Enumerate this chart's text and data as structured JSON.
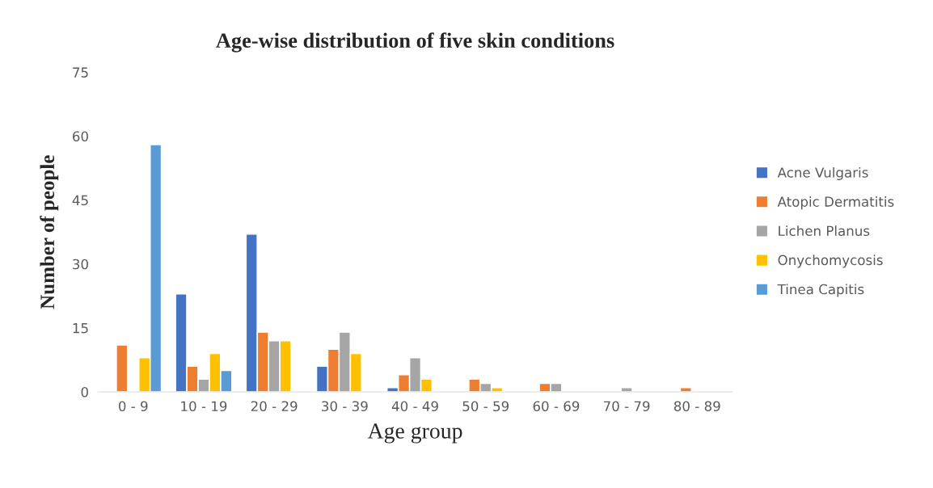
{
  "chart_data": {
    "type": "bar",
    "title": "Age-wise distribution of five skin conditions",
    "xlabel": "Age group",
    "ylabel": "Number of people",
    "categories": [
      "0 - 9",
      "10 - 19",
      "20 - 29",
      "30 - 39",
      "40 - 49",
      "50 - 59",
      "60 - 69",
      "70 - 79",
      "80 - 89"
    ],
    "series": [
      {
        "name": "Acne Vulgaris",
        "color": "#4472c4",
        "values": [
          0,
          23,
          37,
          6,
          1,
          0,
          0,
          0,
          0
        ]
      },
      {
        "name": "Atopic Dermatitis",
        "color": "#ed7d31",
        "values": [
          11,
          6,
          14,
          10,
          4,
          3,
          2,
          0,
          1
        ]
      },
      {
        "name": "Lichen Planus",
        "color": "#a5a5a5",
        "values": [
          0,
          3,
          12,
          14,
          8,
          2,
          2,
          1,
          0
        ]
      },
      {
        "name": "Onychomycosis",
        "color": "#ffc000",
        "values": [
          8,
          9,
          12,
          9,
          3,
          1,
          0,
          0,
          0
        ]
      },
      {
        "name": "Tinea Capitis",
        "color": "#5b9bd5",
        "values": [
          58,
          5,
          0,
          0,
          0,
          0,
          0,
          0,
          0
        ]
      }
    ],
    "ylim": [
      0,
      75
    ],
    "yticks": [
      0,
      15,
      30,
      45,
      60,
      75
    ],
    "grid": false,
    "legend": "right"
  }
}
